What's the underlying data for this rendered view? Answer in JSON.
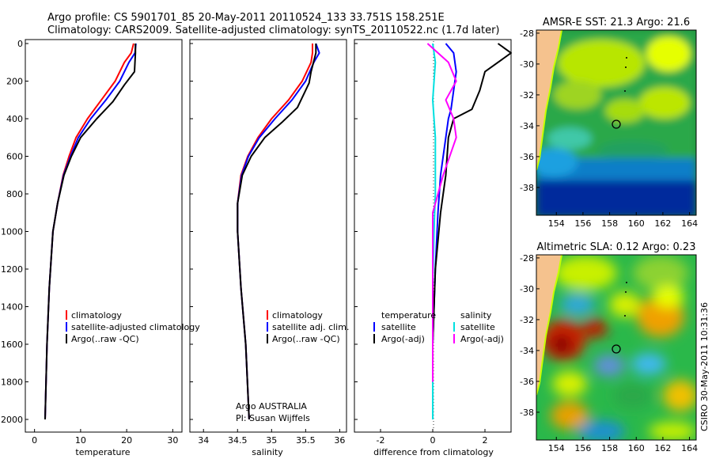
{
  "header": {
    "line1": "Argo profile: CS 5901701_85 20-May-2011 20110524_133 33.751S 158.251E",
    "line2": "Climatology: CARS2009. Satellite-adjusted climatology: synTS_20110522.nc (1.7d later)"
  },
  "footer": {
    "float_program": "Argo AUSTRALIA",
    "pi": "PI: Susan Wijffels",
    "stamp": "CSIRO 30-May-2011 10:31:36"
  },
  "colors": {
    "climatology": "#ff0000",
    "satellite": "#0000ff",
    "argo": "#000000",
    "sat_salinity": "#00e0e0",
    "argo_salinity": "#ff00ff",
    "land": "#f5c28e",
    "coast": "#c8ff00"
  },
  "chart_data": [
    {
      "id": "temperature",
      "type": "line",
      "xlabel": "temperature",
      "ylabel": "",
      "xlim": [
        -2,
        32
      ],
      "ylim": [
        0,
        2050
      ],
      "y_reversed": true,
      "xticks": [
        "0",
        "10",
        "20",
        "30"
      ],
      "yticks": [
        "0",
        "200",
        "400",
        "600",
        "800",
        "1000",
        "1200",
        "1400",
        "1600",
        "1800",
        "2000"
      ],
      "legend": [
        "climatology",
        "satellite-adjusted climatology",
        "Argo(..raw -QC)"
      ],
      "series": [
        {
          "name": "climatology",
          "color": "#ff0000",
          "x": [
            21.5,
            21.0,
            19.5,
            17.5,
            14.5,
            11.5,
            9.0,
            7.5,
            6.2,
            5.0,
            4.0,
            3.2,
            2.7,
            2.3
          ],
          "y": [
            0,
            50,
            100,
            200,
            300,
            400,
            500,
            600,
            700,
            850,
            1000,
            1300,
            1600,
            2000
          ]
        },
        {
          "name": "satellite-adjusted climatology",
          "color": "#0000ff",
          "x": [
            22.0,
            21.8,
            20.5,
            18.5,
            15.5,
            12.2,
            9.5,
            7.8,
            6.3,
            5.0,
            4.0,
            3.2,
            2.7,
            2.3
          ],
          "y": [
            0,
            50,
            100,
            200,
            300,
            400,
            500,
            600,
            700,
            850,
            1000,
            1300,
            1600,
            2000
          ]
        },
        {
          "name": "Argo(..raw -QC)",
          "color": "#000000",
          "x": [
            21.9,
            21.9,
            21.7,
            19.5,
            17.0,
            13.5,
            10.0,
            8.0,
            6.4,
            5.0,
            4.0,
            3.2,
            2.7,
            2.3
          ],
          "y": [
            0,
            50,
            150,
            220,
            310,
            400,
            500,
            600,
            700,
            850,
            1000,
            1300,
            1600,
            2000
          ]
        }
      ]
    },
    {
      "id": "salinity",
      "type": "line",
      "xlabel": "salinity",
      "ylabel": "",
      "xlim": [
        33.8,
        36.1
      ],
      "ylim": [
        0,
        2050
      ],
      "y_reversed": true,
      "xticks": [
        "34",
        "34.5",
        "35",
        "35.5",
        "36"
      ],
      "legend": [
        "climatology",
        "satellite adj. clim.",
        "Argo(..raw -QC)"
      ],
      "series": [
        {
          "name": "climatology",
          "color": "#ff0000",
          "x": [
            35.6,
            35.6,
            35.58,
            35.45,
            35.25,
            35.0,
            34.8,
            34.65,
            34.55,
            34.5,
            34.5,
            34.55,
            34.62,
            34.67
          ],
          "y": [
            0,
            50,
            100,
            200,
            300,
            400,
            500,
            600,
            700,
            850,
            1000,
            1300,
            1600,
            2000
          ]
        },
        {
          "name": "satellite adj. clim.",
          "color": "#0000ff",
          "x": [
            35.65,
            35.7,
            35.62,
            35.5,
            35.3,
            35.05,
            34.82,
            34.66,
            34.56,
            34.5,
            34.5,
            34.55,
            34.62,
            34.67
          ],
          "y": [
            0,
            50,
            100,
            200,
            300,
            400,
            500,
            600,
            700,
            850,
            1000,
            1300,
            1600,
            2000
          ]
        },
        {
          "name": "Argo(..raw -QC)",
          "color": "#000000",
          "x": [
            35.65,
            35.65,
            35.58,
            35.55,
            35.38,
            35.15,
            34.9,
            34.7,
            34.57,
            34.5,
            34.5,
            34.55,
            34.62,
            34.67
          ],
          "y": [
            0,
            50,
            150,
            210,
            340,
            420,
            500,
            600,
            700,
            850,
            1000,
            1300,
            1600,
            2000
          ]
        }
      ]
    },
    {
      "id": "difference",
      "type": "line",
      "xlabel": "difference from climatology",
      "ylabel": "",
      "xlim": [
        -3,
        3
      ],
      "ylim": [
        0,
        2050
      ],
      "y_reversed": true,
      "xticks": [
        "-2",
        "0",
        "2"
      ],
      "legend_groups": [
        {
          "heading": "temperature",
          "items": [
            "satellite",
            "Argo(-adj)"
          ]
        },
        {
          "heading": "salinity",
          "items": [
            "satellite",
            "Argo(-adj)"
          ]
        }
      ],
      "series": [
        {
          "name": "temperature satellite",
          "color": "#0000ff",
          "x": [
            0.5,
            0.8,
            0.9,
            0.8,
            0.7,
            0.6,
            0.5,
            0.3,
            0.2,
            0.1,
            0.0,
            0.0
          ],
          "y": [
            0,
            50,
            150,
            250,
            350,
            400,
            500,
            700,
            900,
            1200,
            1600,
            2000
          ]
        },
        {
          "name": "temperature Argo(-adj)",
          "color": "#000000",
          "x": [
            2.5,
            3.0,
            2.0,
            1.8,
            1.5,
            0.8,
            0.6,
            0.5,
            0.3,
            0.1,
            0.0,
            0.0
          ],
          "y": [
            0,
            50,
            150,
            250,
            350,
            400,
            500,
            700,
            900,
            1200,
            1600,
            2000
          ]
        },
        {
          "name": "salinity satellite",
          "color": "#00e0e0",
          "x": [
            0.0,
            0.1,
            0.0,
            0.05,
            0.1,
            0.1,
            0.05,
            0.0,
            0.0,
            0.0
          ],
          "y": [
            0,
            100,
            300,
            400,
            500,
            800,
            1000,
            1300,
            1600,
            2000
          ]
        },
        {
          "name": "salinity Argo(-adj)",
          "color": "#ff00ff",
          "x": [
            -0.2,
            0.6,
            0.9,
            0.5,
            0.8,
            0.9,
            0.4,
            0.0,
            0.0,
            0.0
          ],
          "y": [
            0,
            100,
            200,
            300,
            400,
            500,
            700,
            900,
            1300,
            1800
          ]
        }
      ]
    },
    {
      "id": "sst_map",
      "type": "heatmap",
      "title": "AMSR-E SST: 21.3 Argo: 21.6",
      "xticks": [
        "154",
        "156",
        "158",
        "160",
        "162",
        "164"
      ],
      "yticks": [
        "-28",
        "-30",
        "-32",
        "-34",
        "-36",
        "-38"
      ],
      "float_position": {
        "lon": 158.251,
        "lat": -33.751
      }
    },
    {
      "id": "sla_map",
      "type": "heatmap",
      "title": "Altimetric SLA: 0.12 Argo: 0.23",
      "xticks": [
        "154",
        "156",
        "158",
        "160",
        "162",
        "164"
      ],
      "yticks": [
        "-28",
        "-30",
        "-32",
        "-34",
        "-36",
        "-38"
      ],
      "float_position": {
        "lon": 158.251,
        "lat": -33.751
      }
    }
  ]
}
